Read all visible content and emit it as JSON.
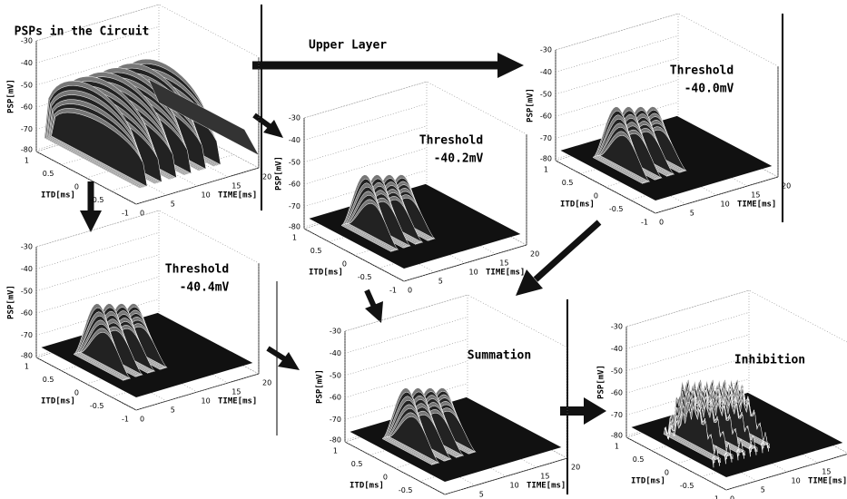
{
  "header": {
    "label": "Upper Layer"
  },
  "axes": {
    "zlabel": "PSP[mV]",
    "xlabel": "ITD[ms]",
    "ylabel": "TIME[ms]",
    "zticks": [
      "-30",
      "-40",
      "-50",
      "-60",
      "-70",
      "-80"
    ],
    "itdticks": [
      "1",
      "0.5",
      "0",
      "-0.5",
      "-1"
    ],
    "timeticks": [
      "0",
      "5",
      "10",
      "15",
      "20"
    ]
  },
  "panels": [
    {
      "title": [
        "PSPs in the Circuit"
      ]
    },
    {
      "title": [
        "Threshold",
        "-40.2mV"
      ]
    },
    {
      "title": [
        "Threshold",
        "-40.0mV"
      ]
    },
    {
      "title": [
        "Threshold",
        "-40.4mV"
      ]
    },
    {
      "title": [
        "Summation"
      ]
    },
    {
      "title": [
        "Inhibition"
      ]
    }
  ]
}
